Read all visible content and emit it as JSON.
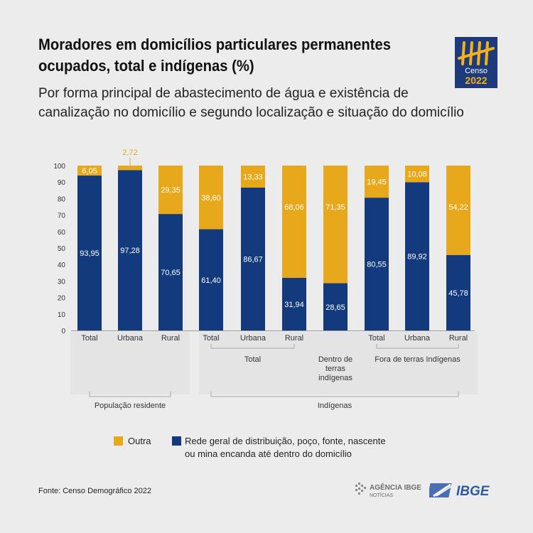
{
  "title": "Moradores em domicílios particulares permanentes ocupados, total e indígenas (%)",
  "subtitle": "Por forma principal de abastecimento de água e existência de canalização no domicílio e segundo localização e situação do domicílio",
  "logo": {
    "line1": "Censo",
    "line2": "2022"
  },
  "colors": {
    "outra": "#e8a81c",
    "rede": "#133a7d"
  },
  "chart_data": {
    "type": "bar",
    "stacked": true,
    "categories": [
      "Total",
      "Urbana",
      "Rural",
      "Total",
      "Urbana",
      "Rural",
      "Dentro de terras indígenas",
      "Total",
      "Urbana",
      "Rural"
    ],
    "category_labels": [
      "Total",
      "Urbana",
      "Rural",
      "Total",
      "Urbana",
      "Rural",
      "",
      "Total",
      "Urbana",
      "Rural"
    ],
    "series": [
      {
        "name": "Rede geral de distribuição, poço, fonte, nascente ou mina encanda até dentro do domicílio",
        "values": [
          93.95,
          97.28,
          70.65,
          61.4,
          86.67,
          31.94,
          28.65,
          80.55,
          89.92,
          45.78
        ]
      },
      {
        "name": "Outra",
        "values": [
          6.05,
          2.72,
          29.35,
          38.6,
          13.33,
          68.06,
          71.35,
          19.45,
          10.08,
          54.22
        ]
      }
    ],
    "data_labels": {
      "rede": [
        "93,95",
        "97,28",
        "70,65",
        "61,40",
        "86,67",
        "31,94",
        "28,65",
        "80,55",
        "89,92",
        "45,78"
      ],
      "outra": [
        "6,05",
        "2,72",
        "29,35",
        "38,60",
        "13,33",
        "68,06",
        "71,35",
        "19,45",
        "10,08",
        "54,22"
      ]
    },
    "ylim": [
      0,
      100
    ],
    "yticks": [
      "0",
      "10",
      "20",
      "30",
      "40",
      "50",
      "60",
      "70",
      "80",
      "90",
      "100"
    ],
    "subgroups": [
      {
        "label": "Total",
        "bars": [
          3,
          4,
          5
        ]
      },
      {
        "label": "Dentro de terras indígenas",
        "lines": [
          "Dentro de",
          "terras",
          "indígenas"
        ],
        "bars": [
          6,
          6
        ]
      },
      {
        "label": "Fora de terras Indígenas",
        "bars": [
          7,
          8,
          9
        ]
      }
    ],
    "groups": [
      {
        "label": "População residente",
        "bars": [
          0,
          2
        ]
      },
      {
        "label": "Indígenas",
        "bars": [
          3,
          9
        ]
      }
    ],
    "legend": {
      "outra": "Outra",
      "rede_line1": "Rede geral de distribuição, poço, fonte, nascente",
      "rede_line2": "ou mina encanda até dentro do domicílio"
    }
  },
  "footer": {
    "source": "Fonte: Censo Demográfico 2022",
    "agencia_top": "AGÊNCIA IBGE",
    "agencia_bottom": "NOTÍCIAS",
    "ibge": "IBGE"
  }
}
